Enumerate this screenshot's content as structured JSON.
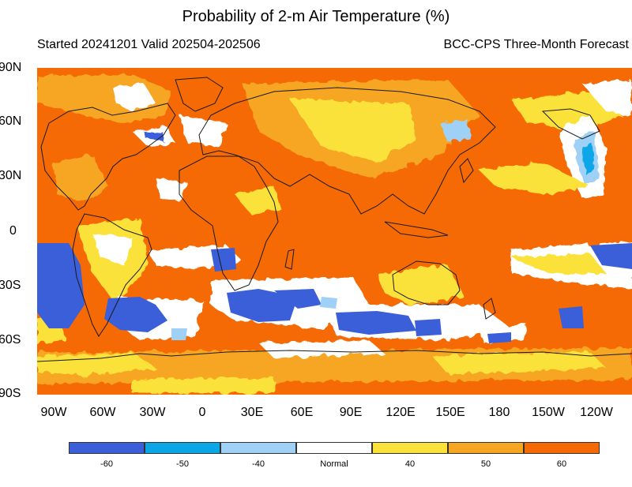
{
  "title": "Probability of 2-m Air Temperature (%)",
  "subtitle_left": "Started 20241201  Valid 202504-202506",
  "subtitle_right": "BCC-CPS Three-Month Forecast",
  "y_axis_labels": [
    "90N",
    "60N",
    "30N",
    "0",
    "30S",
    "60S",
    "90S"
  ],
  "x_axis_labels": [
    "90W",
    "60W",
    "30W",
    "0",
    "30E",
    "60E",
    "90E",
    "120E",
    "150E",
    "180",
    "150W",
    "120W"
  ],
  "legend": {
    "categories": [
      {
        "label": "-60",
        "color": "#3a5fd9"
      },
      {
        "label": "-50",
        "color": "#0aa6e6"
      },
      {
        "label": "-40",
        "color": "#9fd0f5"
      },
      {
        "label": "Normal",
        "color": "#ffffff"
      },
      {
        "label": "40",
        "color": "#fbe23a"
      },
      {
        "label": "50",
        "color": "#f6a623"
      },
      {
        "label": "60",
        "color": "#f56a04"
      }
    ]
  },
  "map_colors": {
    "base": "#f56a04",
    "mid": "#f6a623",
    "light": "#fbe23a",
    "normal": "#ffffff",
    "cold_light": "#9fd0f5",
    "cold_mid": "#0aa6e6",
    "cold_strong": "#3a5fd9",
    "coastline": "#1a1a1a"
  }
}
